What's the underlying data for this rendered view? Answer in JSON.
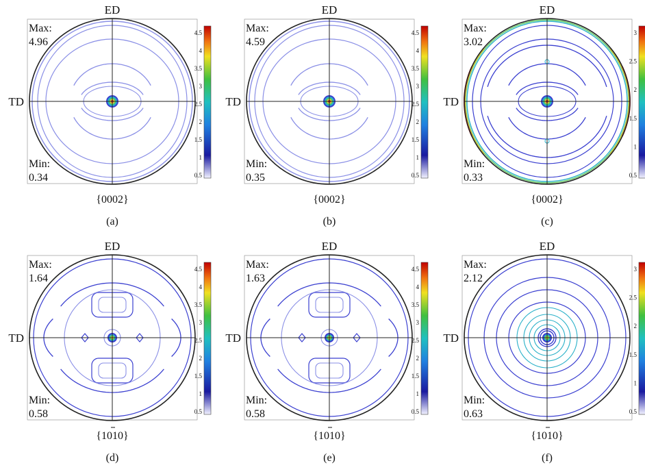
{
  "figure": {
    "panels": [
      {
        "id": "a",
        "caption": "(a)",
        "plane": "{0002}",
        "dir_top": "ED",
        "dir_left": "TD",
        "max_label": "Max:",
        "max_value": "4.96",
        "min_label": "Min:",
        "min_value": "0.34",
        "scale_ticks": [
          "0.5",
          "1",
          "1.5",
          "2",
          "2.5",
          "3",
          "3.5",
          "4",
          "4.5"
        ]
      },
      {
        "id": "b",
        "caption": "(b)",
        "plane": "{0002}",
        "dir_top": "ED",
        "dir_left": "TD",
        "max_label": "Max:",
        "max_value": "4.59",
        "min_label": "Min:",
        "min_value": "0.35",
        "scale_ticks": [
          "0.5",
          "1",
          "1.5",
          "2",
          "2.5",
          "3",
          "3.5",
          "4",
          "4.5"
        ]
      },
      {
        "id": "c",
        "caption": "(c)",
        "plane": "{0002}",
        "dir_top": "ED",
        "dir_left": "TD",
        "max_label": "Max:",
        "max_value": "3.02",
        "min_label": "Min:",
        "min_value": "0.33",
        "scale_ticks": [
          "0.5",
          "1",
          "1.5",
          "2",
          "2.5",
          "3"
        ]
      },
      {
        "id": "d",
        "caption": "(d)",
        "plane": "{1010}",
        "dir_top": "ED",
        "dir_left": "TD",
        "max_label": "Max:",
        "max_value": "1.64",
        "min_label": "Min:",
        "min_value": "0.58",
        "scale_ticks": [
          "0.5",
          "1",
          "1.5",
          "2",
          "2.5",
          "3",
          "3.5",
          "4",
          "4.5"
        ]
      },
      {
        "id": "e",
        "caption": "(e)",
        "plane": "{1010}",
        "dir_top": "ED",
        "dir_left": "TD",
        "max_label": "Max:",
        "max_value": "1.63",
        "min_label": "Min:",
        "min_value": "0.58",
        "scale_ticks": [
          "0.5",
          "1",
          "1.5",
          "2",
          "2.5",
          "3",
          "3.5",
          "4",
          "4.5"
        ]
      },
      {
        "id": "f",
        "caption": "(f)",
        "plane": "{1010}",
        "dir_top": "ED",
        "dir_left": "TD",
        "max_label": "Max:",
        "max_value": "2.12",
        "min_label": "Min:",
        "min_value": "0.63",
        "scale_ticks": [
          "0.5",
          "1",
          "1.5",
          "2",
          "2.5",
          "3"
        ]
      }
    ]
  },
  "chart_data": [
    {
      "type": "heatmap",
      "subtype": "pole-figure",
      "plane": "{0002}",
      "axis_top": "ED",
      "axis_left": "TD",
      "max_intensity": 4.96,
      "min_intensity": 0.34,
      "colorbar_range": [
        0.34,
        4.96
      ],
      "peak": "center"
    },
    {
      "type": "heatmap",
      "subtype": "pole-figure",
      "plane": "{0002}",
      "axis_top": "ED",
      "axis_left": "TD",
      "max_intensity": 4.59,
      "min_intensity": 0.35,
      "colorbar_range": [
        0.35,
        4.59
      ],
      "peak": "center"
    },
    {
      "type": "heatmap",
      "subtype": "pole-figure",
      "plane": "{0002}",
      "axis_top": "ED",
      "axis_left": "TD",
      "max_intensity": 3.02,
      "min_intensity": 0.33,
      "colorbar_range": [
        0.33,
        3.02
      ],
      "peak": "center"
    },
    {
      "type": "heatmap",
      "subtype": "pole-figure",
      "plane": "{1010}",
      "axis_top": "ED",
      "axis_left": "TD",
      "max_intensity": 1.64,
      "min_intensity": 0.58,
      "colorbar_range": [
        0.58,
        4.96
      ],
      "peak": "center"
    },
    {
      "type": "heatmap",
      "subtype": "pole-figure",
      "plane": "{1010}",
      "axis_top": "ED",
      "axis_left": "TD",
      "max_intensity": 1.63,
      "min_intensity": 0.58,
      "colorbar_range": [
        0.58,
        4.59
      ],
      "peak": "center"
    },
    {
      "type": "heatmap",
      "subtype": "pole-figure",
      "plane": "{1010}",
      "axis_top": "ED",
      "axis_left": "TD",
      "max_intensity": 2.12,
      "min_intensity": 0.63,
      "colorbar_range": [
        0.63,
        3.02
      ],
      "peak": "center"
    }
  ],
  "colors": {
    "contour_blue": "#3a3fd0",
    "contour_light": "#8a8fe6",
    "contour_cyan": "#28b0c8",
    "contour_green": "#5cc85c",
    "contour_yellow": "#e0d040",
    "contour_red": "#e03020",
    "outline": "#222222"
  }
}
